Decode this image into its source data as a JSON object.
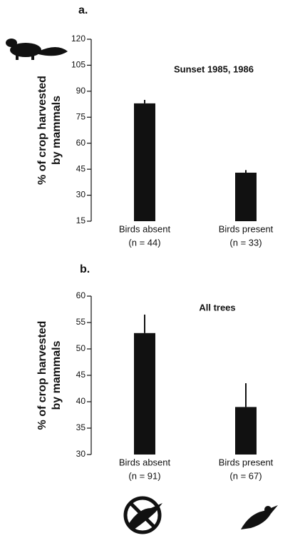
{
  "chart_data": [
    {
      "type": "bar",
      "panel": "a.",
      "annotation": "Sunset 1985, 1986",
      "ylabel": [
        "% of crop harvested",
        "by mammals"
      ],
      "categories": [
        "Birds absent",
        "Birds present"
      ],
      "category_notes": [
        "(n = 44)",
        "(n = 33)"
      ],
      "values": [
        83,
        43
      ],
      "errors": [
        2,
        1.5
      ],
      "color": "#111111",
      "ylim": [
        15,
        120
      ],
      "yticks": [
        15,
        30,
        45,
        60,
        75,
        90,
        105,
        120
      ]
    },
    {
      "type": "bar",
      "panel": "b.",
      "annotation": "All trees",
      "ylabel": [
        "% of crop harvested",
        "by mammals"
      ],
      "categories": [
        "Birds absent",
        "Birds present"
      ],
      "category_notes": [
        "(n = 91)",
        "(n = 67)"
      ],
      "values": [
        53,
        39
      ],
      "errors": [
        3.5,
        4.5
      ],
      "color": "#111111",
      "ylim": [
        30,
        60
      ],
      "yticks": [
        30,
        35,
        40,
        45,
        50,
        55,
        60
      ]
    }
  ]
}
